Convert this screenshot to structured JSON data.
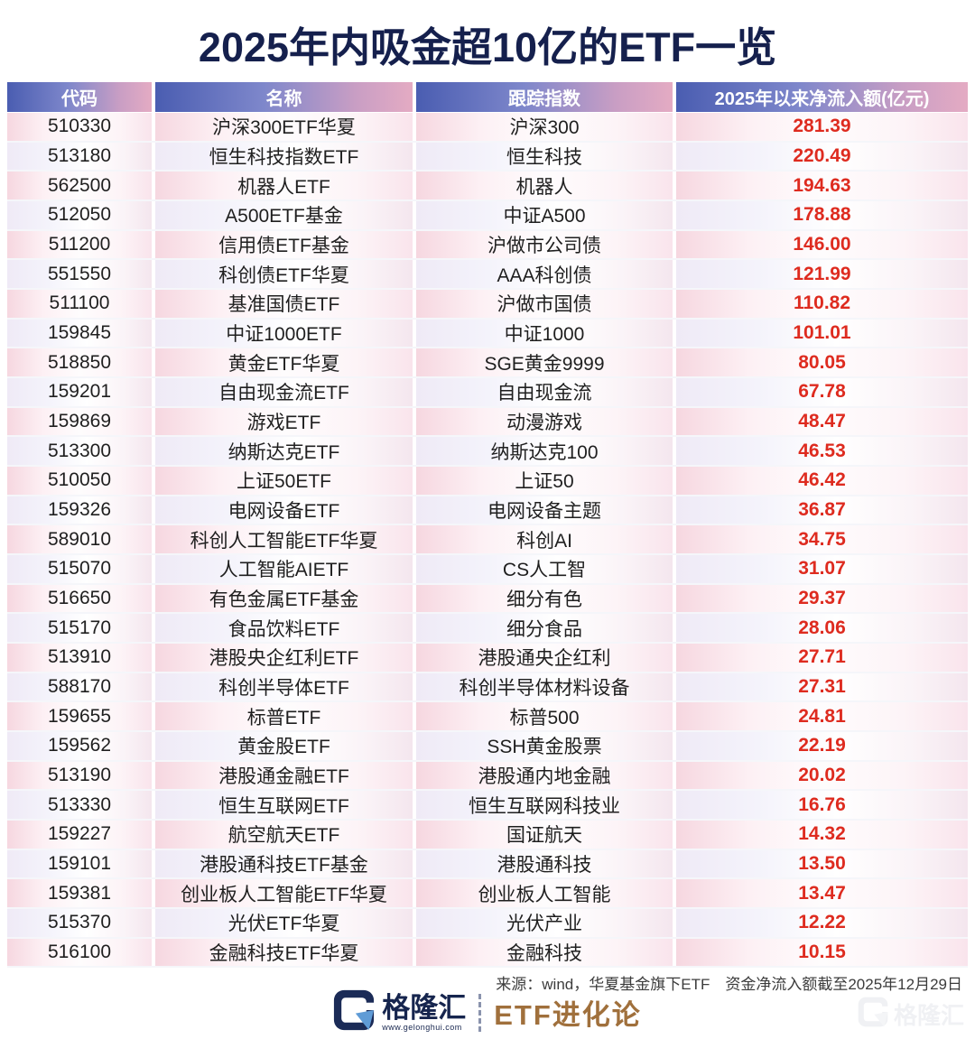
{
  "chart_data": {
    "type": "table",
    "title": "2025年内吸金超10亿的ETF一览",
    "columns": [
      "代码",
      "名称",
      "跟踪指数",
      "2025年以来净流入额(亿元)"
    ],
    "rows": [
      [
        "510330",
        "沪深300ETF华夏",
        "沪深300",
        "281.39"
      ],
      [
        "513180",
        "恒生科技指数ETF",
        "恒生科技",
        "220.49"
      ],
      [
        "562500",
        "机器人ETF",
        "机器人",
        "194.63"
      ],
      [
        "512050",
        "A500ETF基金",
        "中证A500",
        "178.88"
      ],
      [
        "511200",
        "信用债ETF基金",
        "沪做市公司债",
        "146.00"
      ],
      [
        "551550",
        "科创债ETF华夏",
        "AAA科创债",
        "121.99"
      ],
      [
        "511100",
        "基准国债ETF",
        "沪做市国债",
        "110.82"
      ],
      [
        "159845",
        "中证1000ETF",
        "中证1000",
        "101.01"
      ],
      [
        "518850",
        "黄金ETF华夏",
        "SGE黄金9999",
        "80.05"
      ],
      [
        "159201",
        "自由现金流ETF",
        "自由现金流",
        "67.78"
      ],
      [
        "159869",
        "游戏ETF",
        "动漫游戏",
        "48.47"
      ],
      [
        "513300",
        "纳斯达克ETF",
        "纳斯达克100",
        "46.53"
      ],
      [
        "510050",
        "上证50ETF",
        "上证50",
        "46.42"
      ],
      [
        "159326",
        "电网设备ETF",
        "电网设备主题",
        "36.87"
      ],
      [
        "589010",
        "科创人工智能ETF华夏",
        "科创AI",
        "34.75"
      ],
      [
        "515070",
        "人工智能AIETF",
        "CS人工智",
        "31.07"
      ],
      [
        "516650",
        "有色金属ETF基金",
        "细分有色",
        "29.37"
      ],
      [
        "515170",
        "食品饮料ETF",
        "细分食品",
        "28.06"
      ],
      [
        "513910",
        "港股央企红利ETF",
        "港股通央企红利",
        "27.71"
      ],
      [
        "588170",
        "科创半导体ETF",
        "科创半导体材料设备",
        "27.31"
      ],
      [
        "159655",
        "标普ETF",
        "标普500",
        "24.81"
      ],
      [
        "159562",
        "黄金股ETF",
        "SSH黄金股票",
        "22.19"
      ],
      [
        "513190",
        "港股通金融ETF",
        "港股通内地金融",
        "20.02"
      ],
      [
        "513330",
        "恒生互联网ETF",
        "恒生互联网科技业",
        "16.76"
      ],
      [
        "159227",
        "航空航天ETF",
        "国证航天",
        "14.32"
      ],
      [
        "159101",
        "港股通科技ETF基金",
        "港股通科技",
        "13.50"
      ],
      [
        "159381",
        "创业板人工智能ETF华夏",
        "创业板人工智能",
        "13.47"
      ],
      [
        "515370",
        "光伏ETF华夏",
        "光伏产业",
        "12.22"
      ],
      [
        "516100",
        "金融科技ETF华夏",
        "金融科技",
        "10.15"
      ]
    ],
    "layout": {
      "grid": "row-striped",
      "header_gradient": true,
      "legend": "none"
    }
  },
  "footer": {
    "source_note": "来源：wind，华夏基金旗下ETF　资金净流入额截至2025年12月29日",
    "brand_name": "格隆汇",
    "brand_url": "www.gelonghui.com",
    "brand_sub": "ETF进化论",
    "watermark_text": "格隆汇"
  },
  "colors": {
    "title_navy": "#15204d",
    "header_gradient_start": "#4a5db1",
    "header_gradient_end": "#e4abc3",
    "value_red": "#de2b1f",
    "row_pink": "#f6d7e0",
    "brand_navy": "#16254e",
    "brand_bronze": "#a0703c",
    "logo_blue_accent": "#5f9bd6"
  }
}
